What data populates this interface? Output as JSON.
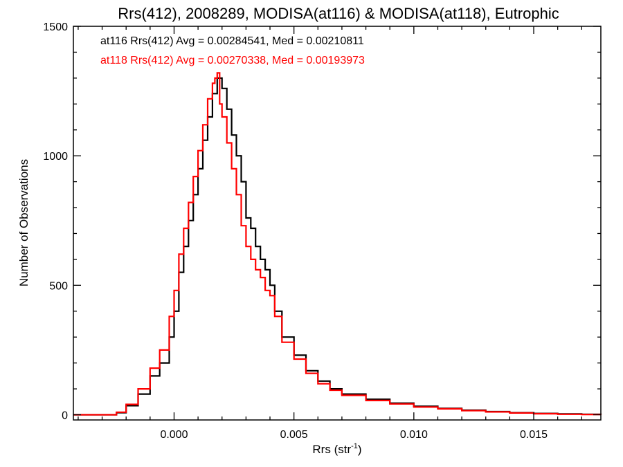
{
  "chart_data": {
    "type": "line",
    "step": true,
    "title": "Rrs(412), 2008289, MODISA(at116) & MODISA(at118), Eutrophic",
    "xlabel_base": "Rrs (str",
    "xlabel_sup": "-1",
    "xlabel_close": ")",
    "ylabel": "Number of Observations",
    "xlim": [
      -0.0042,
      0.0178
    ],
    "ylim": [
      -20,
      1500
    ],
    "xticks": [
      0.0,
      0.005,
      0.01,
      0.015
    ],
    "xtick_labels": [
      "0.000",
      "0.005",
      "0.010",
      "0.015"
    ],
    "yticks": [
      0,
      500,
      1000,
      1500
    ],
    "ytick_labels": [
      "0",
      "500",
      "1000",
      "1500"
    ],
    "grid": false,
    "annotations": [
      {
        "text": "at116 Rrs(412) Avg = 0.00284541, Med = 0.00210811",
        "color": "#000000"
      },
      {
        "text": "at118 Rrs(412) Avg = 0.00270338, Med = 0.00193973",
        "color": "#ff0000"
      }
    ],
    "series": [
      {
        "name": "at116",
        "color": "#000000",
        "x": [
          -0.0042,
          -0.003,
          -0.0024,
          -0.002,
          -0.0015,
          -0.001,
          -0.0006,
          -0.0002,
          0.0,
          0.0002,
          0.0004,
          0.0006,
          0.0008,
          0.001,
          0.0012,
          0.0014,
          0.0016,
          0.0018,
          0.0019,
          0.002,
          0.0022,
          0.0024,
          0.0026,
          0.0028,
          0.003,
          0.0032,
          0.0034,
          0.0036,
          0.0038,
          0.004,
          0.0042,
          0.0045,
          0.005,
          0.0055,
          0.006,
          0.0065,
          0.007,
          0.008,
          0.009,
          0.01,
          0.011,
          0.012,
          0.013,
          0.014,
          0.015,
          0.016,
          0.017,
          0.0178
        ],
        "values": [
          0,
          0,
          8,
          35,
          80,
          150,
          200,
          300,
          400,
          550,
          650,
          750,
          850,
          950,
          1060,
          1150,
          1240,
          1300,
          1300,
          1260,
          1180,
          1080,
          1000,
          900,
          760,
          720,
          650,
          600,
          560,
          500,
          400,
          300,
          230,
          170,
          130,
          100,
          80,
          60,
          45,
          33,
          25,
          18,
          12,
          8,
          5,
          3,
          2,
          0
        ]
      },
      {
        "name": "at118",
        "color": "#ff0000",
        "x": [
          -0.0042,
          -0.003,
          -0.0024,
          -0.002,
          -0.0015,
          -0.001,
          -0.0006,
          -0.0002,
          0.0,
          0.0002,
          0.0004,
          0.0006,
          0.0008,
          0.001,
          0.0012,
          0.0014,
          0.0016,
          0.0017,
          0.0018,
          0.0019,
          0.002,
          0.0022,
          0.0024,
          0.0026,
          0.0028,
          0.003,
          0.0032,
          0.0034,
          0.0036,
          0.0038,
          0.004,
          0.0042,
          0.0045,
          0.005,
          0.0055,
          0.006,
          0.0065,
          0.007,
          0.008,
          0.009,
          0.01,
          0.011,
          0.012,
          0.013,
          0.014,
          0.015,
          0.016,
          0.017,
          0.0178
        ],
        "values": [
          0,
          0,
          10,
          40,
          100,
          180,
          250,
          380,
          480,
          620,
          720,
          820,
          920,
          1020,
          1120,
          1220,
          1280,
          1300,
          1320,
          1200,
          1150,
          1050,
          950,
          850,
          730,
          650,
          600,
          560,
          530,
          480,
          460,
          380,
          280,
          215,
          160,
          120,
          95,
          75,
          55,
          42,
          30,
          23,
          16,
          11,
          7,
          4,
          2,
          1,
          0
        ]
      }
    ]
  }
}
